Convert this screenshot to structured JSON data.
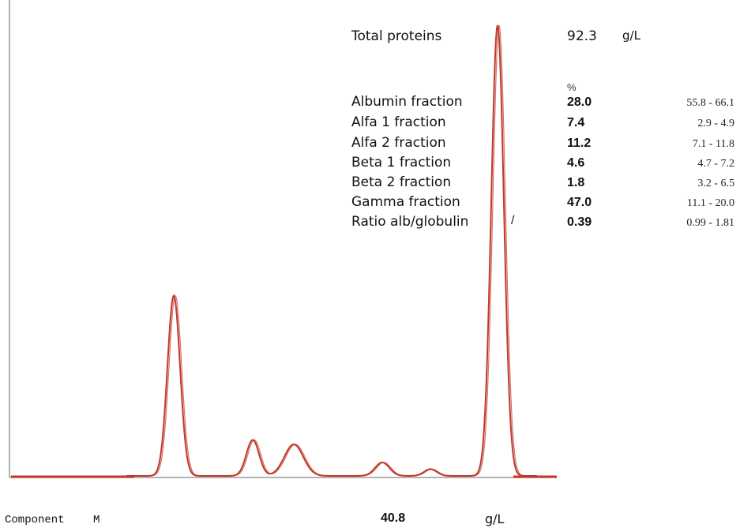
{
  "colors": {
    "trace": "#c0392b",
    "axis": "#999999",
    "baseline": "#c0392b"
  },
  "report": {
    "total_proteins_label": "Total proteins",
    "total_proteins_value": "92.3",
    "total_proteins_unit": "g/L",
    "percent_header": "%",
    "ratio_separator": "/",
    "component_label": "Component",
    "component_name": "M",
    "component_value": "40.8",
    "component_unit": "g/L"
  },
  "chart_data": {
    "type": "line",
    "title": "",
    "xlabel": "",
    "ylabel": "",
    "grid": false,
    "legend": "none",
    "fractions": [
      {
        "name": "Albumin fraction",
        "percent": "28.0",
        "reference": "55.8 - 66.1"
      },
      {
        "name": "Alfa 1 fraction",
        "percent": "7.4",
        "reference": "2.9 - 4.9"
      },
      {
        "name": "Alfa 2 fraction",
        "percent": "11.2",
        "reference": "7.1 - 11.8"
      },
      {
        "name": "Beta 1 fraction",
        "percent": "4.6",
        "reference": "4.7 - 7.2"
      },
      {
        "name": "Beta 2 fraction",
        "percent": "1.8",
        "reference": "3.2 - 6.5"
      },
      {
        "name": "Gamma fraction",
        "percent": "47.0",
        "reference": "11.1 - 20.0"
      },
      {
        "name": "Ratio alb/globulin",
        "percent": "0.39",
        "reference": "0.99 - 1.81"
      }
    ],
    "peaks": [
      {
        "name": "Albumin",
        "x": 220,
        "height": 0.4,
        "width": 8
      },
      {
        "name": "Alfa 1",
        "x": 320,
        "height": 0.08,
        "width": 8
      },
      {
        "name": "Alfa 2",
        "x": 372,
        "height": 0.07,
        "width": 12
      },
      {
        "name": "Beta 1",
        "x": 484,
        "height": 0.03,
        "width": 9
      },
      {
        "name": "Beta 2",
        "x": 545,
        "height": 0.015,
        "width": 8
      },
      {
        "name": "Gamma (M component)",
        "x": 630,
        "height": 1.0,
        "width": 8
      }
    ]
  }
}
